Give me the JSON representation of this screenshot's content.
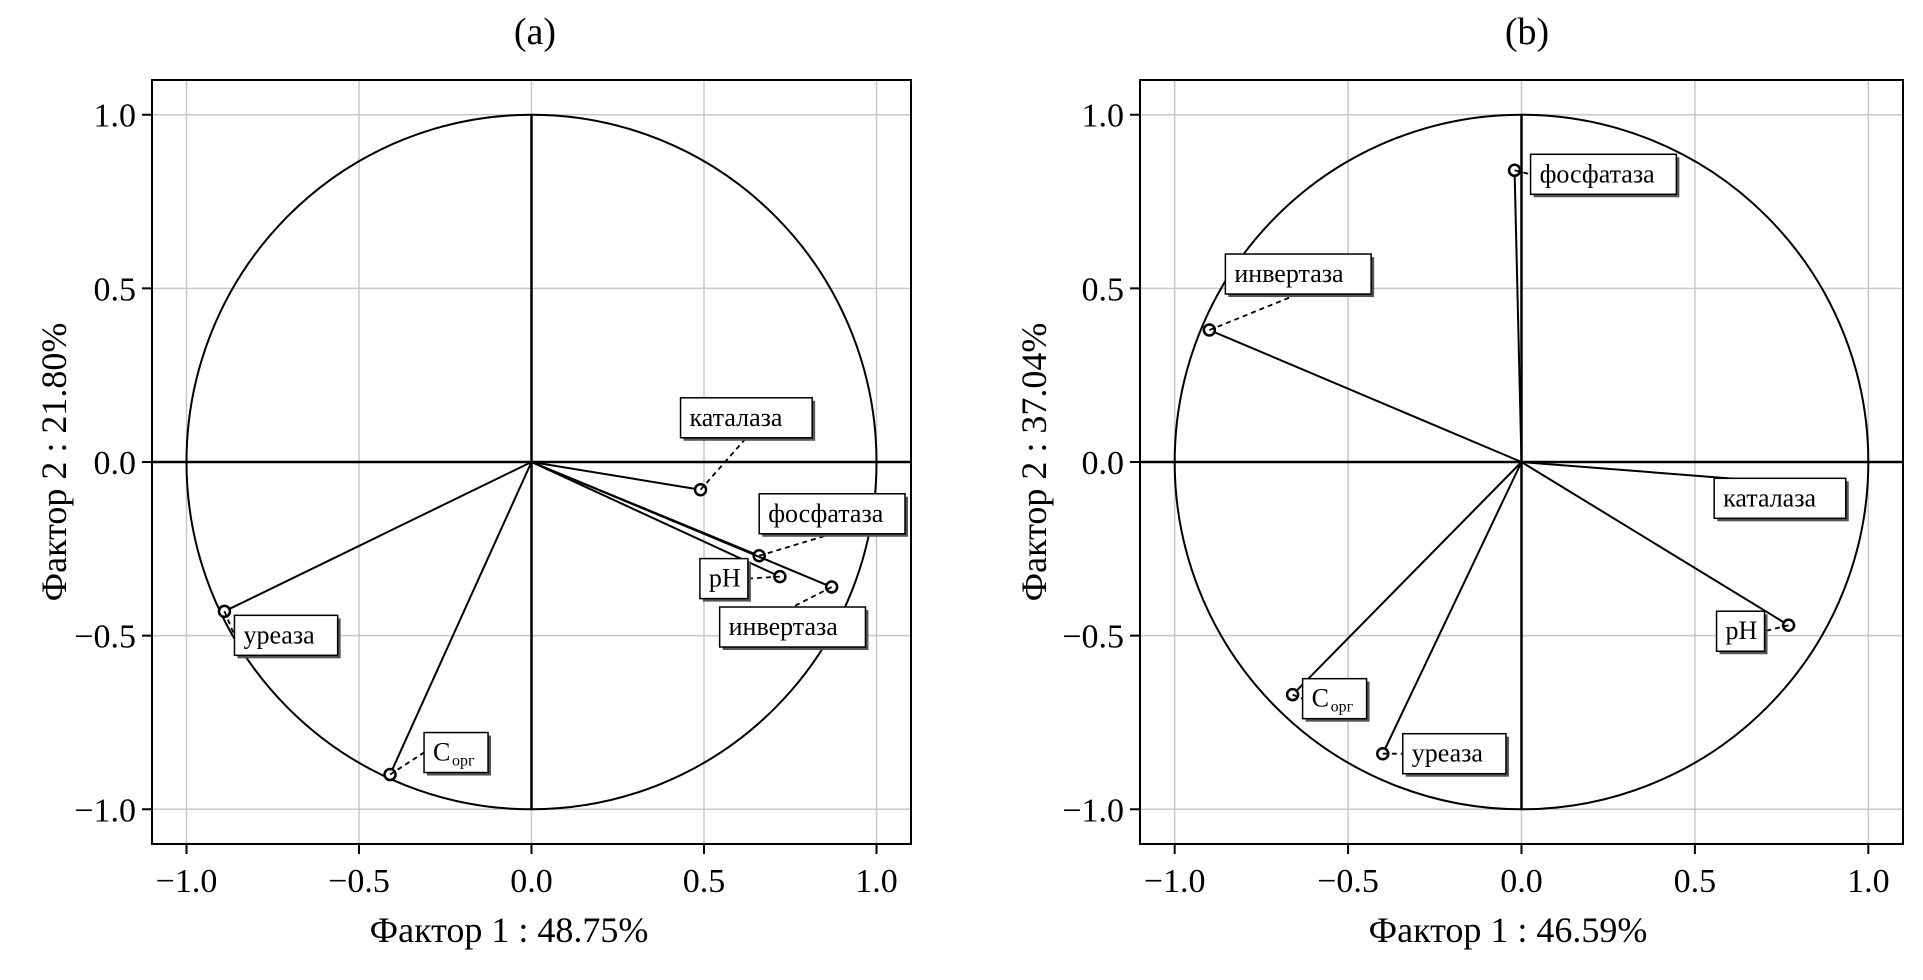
{
  "chart_data": [
    {
      "type": "scatter",
      "title": "(a)",
      "xlabel": "Фактор 1 : 48.75%",
      "ylabel": "Фактор 2 : 21.80%",
      "xlim": [
        -1.1,
        1.1
      ],
      "ylim": [
        -1.1,
        1.1
      ],
      "xticks": [
        -1.0,
        -0.5,
        0.0,
        0.5,
        1.0
      ],
      "yticks": [
        -1.0,
        -0.5,
        0.0,
        0.5,
        1.0
      ],
      "xtick_labels": [
        "−1.0",
        "−0.5",
        "0.0",
        "0.5",
        "1.0"
      ],
      "ytick_labels": [
        "−1.0",
        "−0.5",
        "0.0",
        "0.5",
        "1.0"
      ],
      "grid": true,
      "unit_circle": true,
      "points": [
        {
          "label": "каталаза",
          "x": 0.49,
          "y": -0.08
        },
        {
          "label": "фосфатаза",
          "x": 0.66,
          "y": -0.27
        },
        {
          "label": "pH",
          "x": 0.72,
          "y": -0.33
        },
        {
          "label": "инвертаза",
          "x": 0.87,
          "y": -0.36
        },
        {
          "label": "уреаза",
          "x": -0.89,
          "y": -0.43
        },
        {
          "label": "C",
          "label_sub": "орг",
          "x": -0.41,
          "y": -0.9
        }
      ]
    },
    {
      "type": "scatter",
      "title": "(b)",
      "xlabel": "Фактор 1 : 46.59%",
      "ylabel": "Фактор 2 : 37.04%",
      "xlim": [
        -1.1,
        1.1
      ],
      "ylim": [
        -1.1,
        1.1
      ],
      "xticks": [
        -1.0,
        -0.5,
        0.0,
        0.5,
        1.0
      ],
      "yticks": [
        -1.0,
        -0.5,
        0.0,
        0.5,
        1.0
      ],
      "xtick_labels": [
        "−1.0",
        "−0.5",
        "0.0",
        "0.5",
        "1.0"
      ],
      "ytick_labels": [
        "−1.0",
        "−0.5",
        "0.0",
        "0.5",
        "1.0"
      ],
      "grid": true,
      "unit_circle": true,
      "points": [
        {
          "label": "фосфатаза",
          "x": -0.02,
          "y": 0.84
        },
        {
          "label": "инвертаза",
          "x": -0.9,
          "y": 0.38
        },
        {
          "label": "каталаза",
          "x": 0.89,
          "y": -0.07
        },
        {
          "label": "pH",
          "x": 0.77,
          "y": -0.47
        },
        {
          "label": "C",
          "label_sub": "орг",
          "x": -0.66,
          "y": -0.67
        },
        {
          "label": "уреаза",
          "x": -0.4,
          "y": -0.84
        }
      ]
    }
  ]
}
